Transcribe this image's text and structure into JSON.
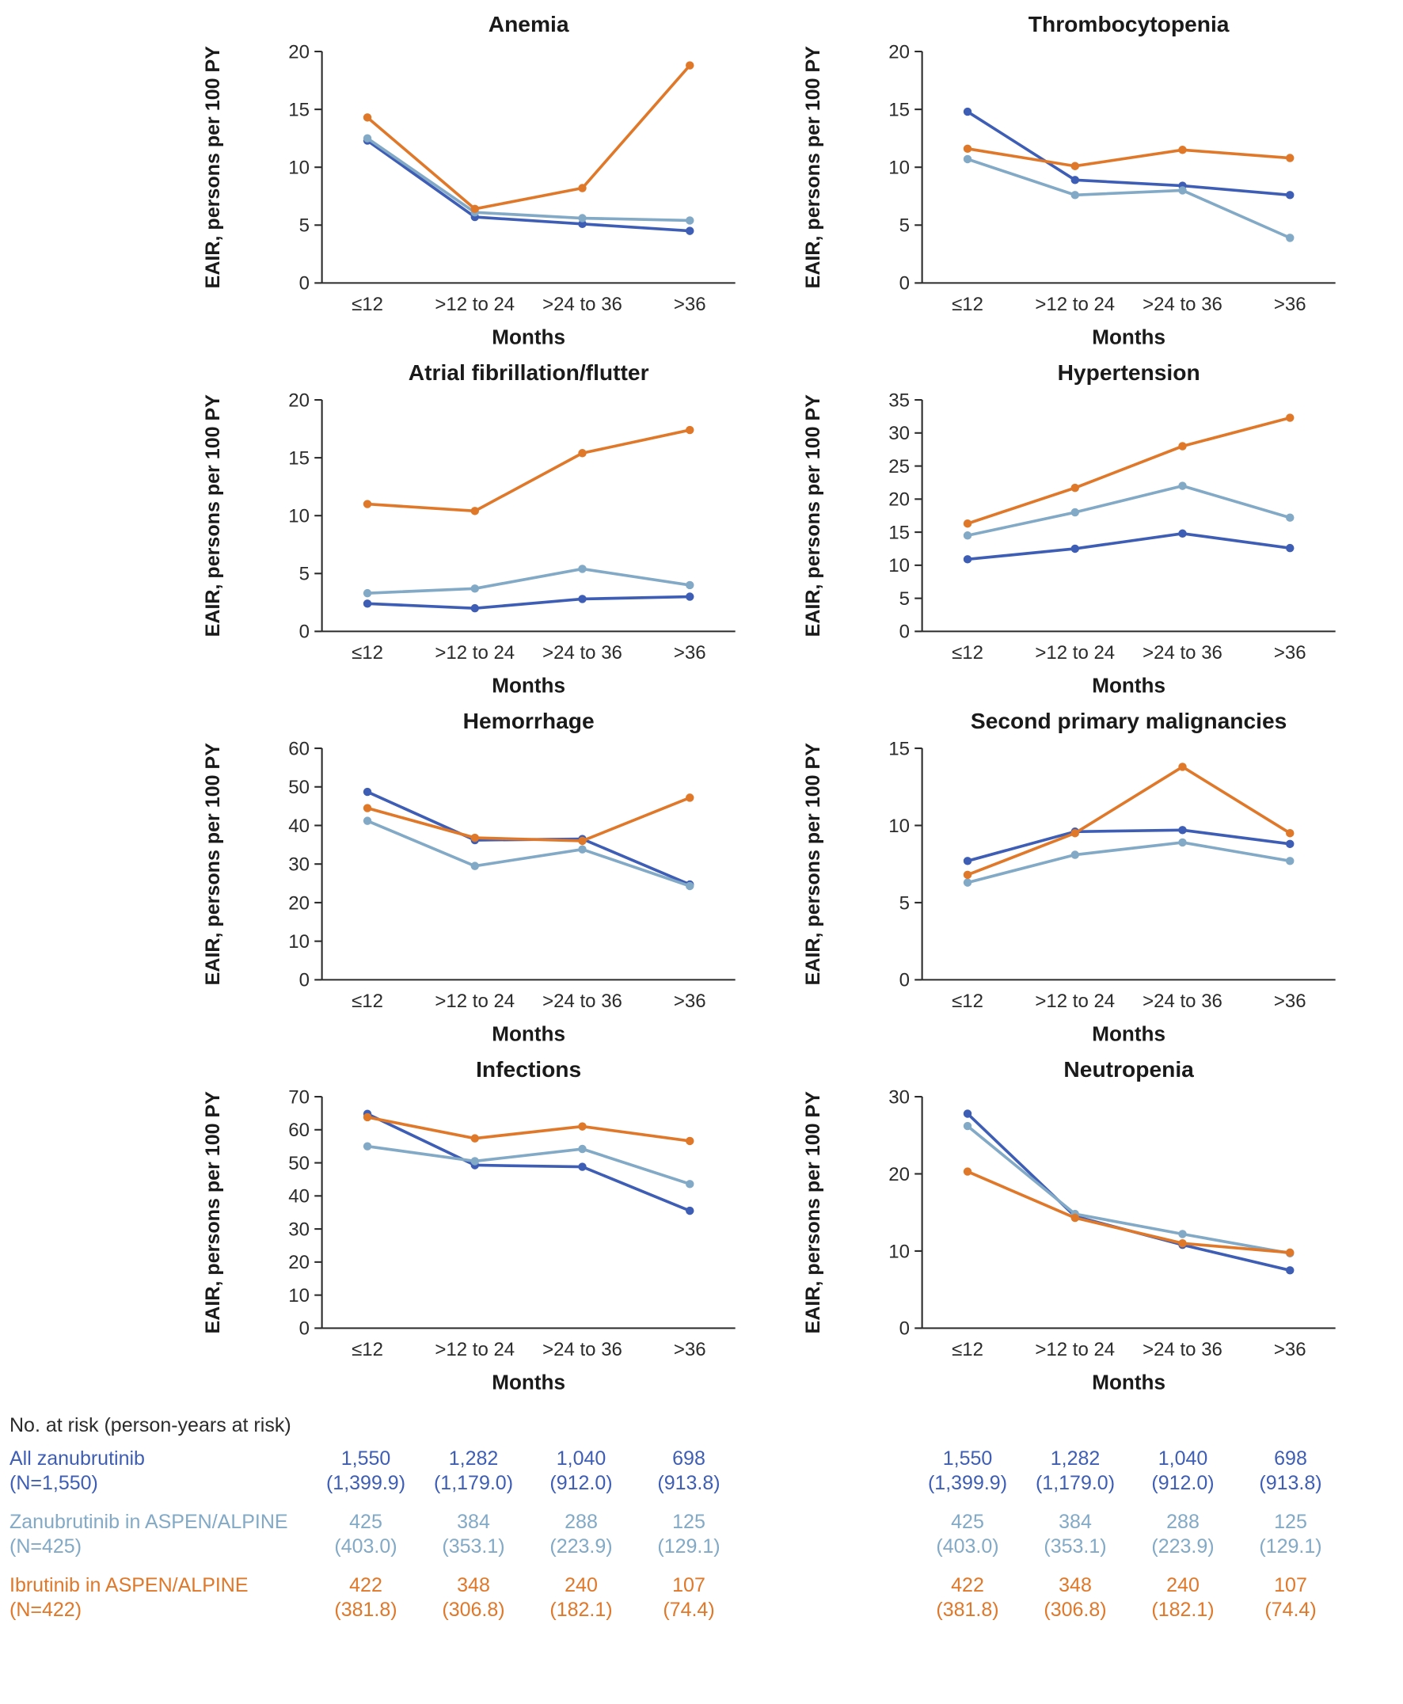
{
  "figure": {
    "y_axis_label": "EAIR, persons per 100 PY",
    "x_axis_label": "Months"
  },
  "palette": [
    {
      "name": "All zanubrutinib",
      "color": "#3E5EB5"
    },
    {
      "name": "Zanubrutinib in ASPEN/ALPINE",
      "color": "#82A9C6"
    },
    {
      "name": "Ibrutinib in ASPEN/ALPINE",
      "color": "#E0782A"
    }
  ],
  "chart_data": [
    {
      "type": "line",
      "title": "Anemia",
      "ylabel": "EAIR, persons per 100 PY",
      "xlabel": "Months",
      "categories": [
        "≤12",
        ">12 to 24",
        ">24 to 36",
        ">36"
      ],
      "ylim": [
        0,
        20
      ],
      "ytick": 5,
      "series": [
        {
          "name": "All zanubrutinib",
          "values": [
            12.3,
            5.7,
            5.1,
            4.5
          ]
        },
        {
          "name": "Zanubrutinib in ASPEN/ALPINE",
          "values": [
            12.5,
            6.1,
            5.6,
            5.4
          ]
        },
        {
          "name": "Ibrutinib in ASPEN/ALPINE",
          "values": [
            14.3,
            6.4,
            8.2,
            18.8
          ]
        }
      ]
    },
    {
      "type": "line",
      "title": "Thrombocytopenia",
      "ylabel": "EAIR, persons per 100 PY",
      "xlabel": "Months",
      "categories": [
        "≤12",
        ">12 to 24",
        ">24 to 36",
        ">36"
      ],
      "ylim": [
        0,
        20
      ],
      "ytick": 5,
      "series": [
        {
          "name": "All zanubrutinib",
          "values": [
            14.8,
            8.9,
            8.4,
            7.6
          ]
        },
        {
          "name": "Zanubrutinib in ASPEN/ALPINE",
          "values": [
            10.7,
            7.6,
            8.0,
            3.9
          ]
        },
        {
          "name": "Ibrutinib in ASPEN/ALPINE",
          "values": [
            11.6,
            10.1,
            11.5,
            10.8
          ]
        }
      ]
    },
    {
      "type": "line",
      "title": "Atrial fibrillation/flutter",
      "ylabel": "EAIR, persons per 100 PY",
      "xlabel": "Months",
      "categories": [
        "≤12",
        ">12 to 24",
        ">24 to 36",
        ">36"
      ],
      "ylim": [
        0,
        20
      ],
      "ytick": 5,
      "series": [
        {
          "name": "All zanubrutinib",
          "values": [
            2.4,
            2.0,
            2.8,
            3.0
          ]
        },
        {
          "name": "Zanubrutinib in ASPEN/ALPINE",
          "values": [
            3.3,
            3.7,
            5.4,
            4.0
          ]
        },
        {
          "name": "Ibrutinib in ASPEN/ALPINE",
          "values": [
            11.0,
            10.4,
            15.4,
            17.4
          ]
        }
      ]
    },
    {
      "type": "line",
      "title": "Hypertension",
      "ylabel": "EAIR, persons per 100 PY",
      "xlabel": "Months",
      "categories": [
        "≤12",
        ">12 to 24",
        ">24 to 36",
        ">36"
      ],
      "ylim": [
        0,
        35
      ],
      "ytick": 5,
      "series": [
        {
          "name": "All zanubrutinib",
          "values": [
            10.9,
            12.5,
            14.8,
            12.6
          ]
        },
        {
          "name": "Zanubrutinib in ASPEN/ALPINE",
          "values": [
            14.5,
            18.0,
            22.0,
            17.2
          ]
        },
        {
          "name": "Ibrutinib in ASPEN/ALPINE",
          "values": [
            16.3,
            21.7,
            28.0,
            32.3
          ]
        }
      ]
    },
    {
      "type": "line",
      "title": "Hemorrhage",
      "ylabel": "EAIR, persons per 100 PY",
      "xlabel": "Months",
      "categories": [
        "≤12",
        ">12 to 24",
        ">24 to 36",
        ">36"
      ],
      "ylim": [
        0,
        60
      ],
      "ytick": 10,
      "series": [
        {
          "name": "All zanubrutinib",
          "values": [
            48.7,
            36.2,
            36.5,
            24.7
          ]
        },
        {
          "name": "Zanubrutinib in ASPEN/ALPINE",
          "values": [
            41.2,
            29.5,
            33.8,
            24.3
          ]
        },
        {
          "name": "Ibrutinib in ASPEN/ALPINE",
          "values": [
            44.5,
            36.8,
            36.0,
            47.2
          ]
        }
      ]
    },
    {
      "type": "line",
      "title": "Second primary malignancies",
      "ylabel": "EAIR, persons per 100 PY",
      "xlabel": "Months",
      "categories": [
        "≤12",
        ">12 to 24",
        ">24 to 36",
        ">36"
      ],
      "ylim": [
        0,
        15
      ],
      "ytick": 5,
      "series": [
        {
          "name": "All zanubrutinib",
          "values": [
            7.7,
            9.6,
            9.7,
            8.8
          ]
        },
        {
          "name": "Zanubrutinib in ASPEN/ALPINE",
          "values": [
            6.3,
            8.1,
            8.9,
            7.7
          ]
        },
        {
          "name": "Ibrutinib in ASPEN/ALPINE",
          "values": [
            6.8,
            9.5,
            13.8,
            9.5
          ]
        }
      ]
    },
    {
      "type": "line",
      "title": "Infections",
      "ylabel": "EAIR, persons per 100 PY",
      "xlabel": "Months",
      "categories": [
        "≤12",
        ">12 to 24",
        ">24 to 36",
        ">36"
      ],
      "ylim": [
        0,
        70
      ],
      "ytick": 10,
      "series": [
        {
          "name": "All zanubrutinib",
          "values": [
            64.8,
            49.3,
            48.8,
            35.5
          ]
        },
        {
          "name": "Zanubrutinib in ASPEN/ALPINE",
          "values": [
            55.0,
            50.5,
            54.2,
            43.6
          ]
        },
        {
          "name": "Ibrutinib in ASPEN/ALPINE",
          "values": [
            63.8,
            57.4,
            61.0,
            56.6
          ]
        }
      ]
    },
    {
      "type": "line",
      "title": "Neutropenia",
      "ylabel": "EAIR, persons per 100 PY",
      "xlabel": "Months",
      "categories": [
        "≤12",
        ">12 to 24",
        ">24 to 36",
        ">36"
      ],
      "ylim": [
        0,
        30
      ],
      "ytick": 10,
      "series": [
        {
          "name": "All zanubrutinib",
          "values": [
            27.8,
            14.5,
            10.8,
            7.5
          ]
        },
        {
          "name": "Zanubrutinib in ASPEN/ALPINE",
          "values": [
            26.2,
            14.8,
            12.2,
            9.7
          ]
        },
        {
          "name": "Ibrutinib in ASPEN/ALPINE",
          "values": [
            20.3,
            14.3,
            11.0,
            9.8
          ]
        }
      ]
    }
  ],
  "risk_table": {
    "heading": "No. at risk (person-years at risk)",
    "rows": [
      {
        "label": "All zanubrutinib",
        "n_label": "(N=1,550)",
        "color": "#3E5EB5",
        "counts": [
          "1,550",
          "1,282",
          "1,040",
          "698"
        ],
        "py": [
          "(1,399.9)",
          "(1,179.0)",
          "(912.0)",
          "(913.8)"
        ]
      },
      {
        "label": "Zanubrutinib in ASPEN/ALPINE",
        "n_label": "(N=425)",
        "color": "#82A9C6",
        "counts": [
          "425",
          "384",
          "288",
          "125"
        ],
        "py": [
          "(403.0)",
          "(353.1)",
          "(223.9)",
          "(129.1)"
        ]
      },
      {
        "label": "Ibrutinib in ASPEN/ALPINE",
        "n_label": "(N=422)",
        "color": "#E0782A",
        "counts": [
          "422",
          "348",
          "240",
          "107"
        ],
        "py": [
          "(381.8)",
          "(306.8)",
          "(182.1)",
          "(74.4)"
        ]
      }
    ]
  }
}
